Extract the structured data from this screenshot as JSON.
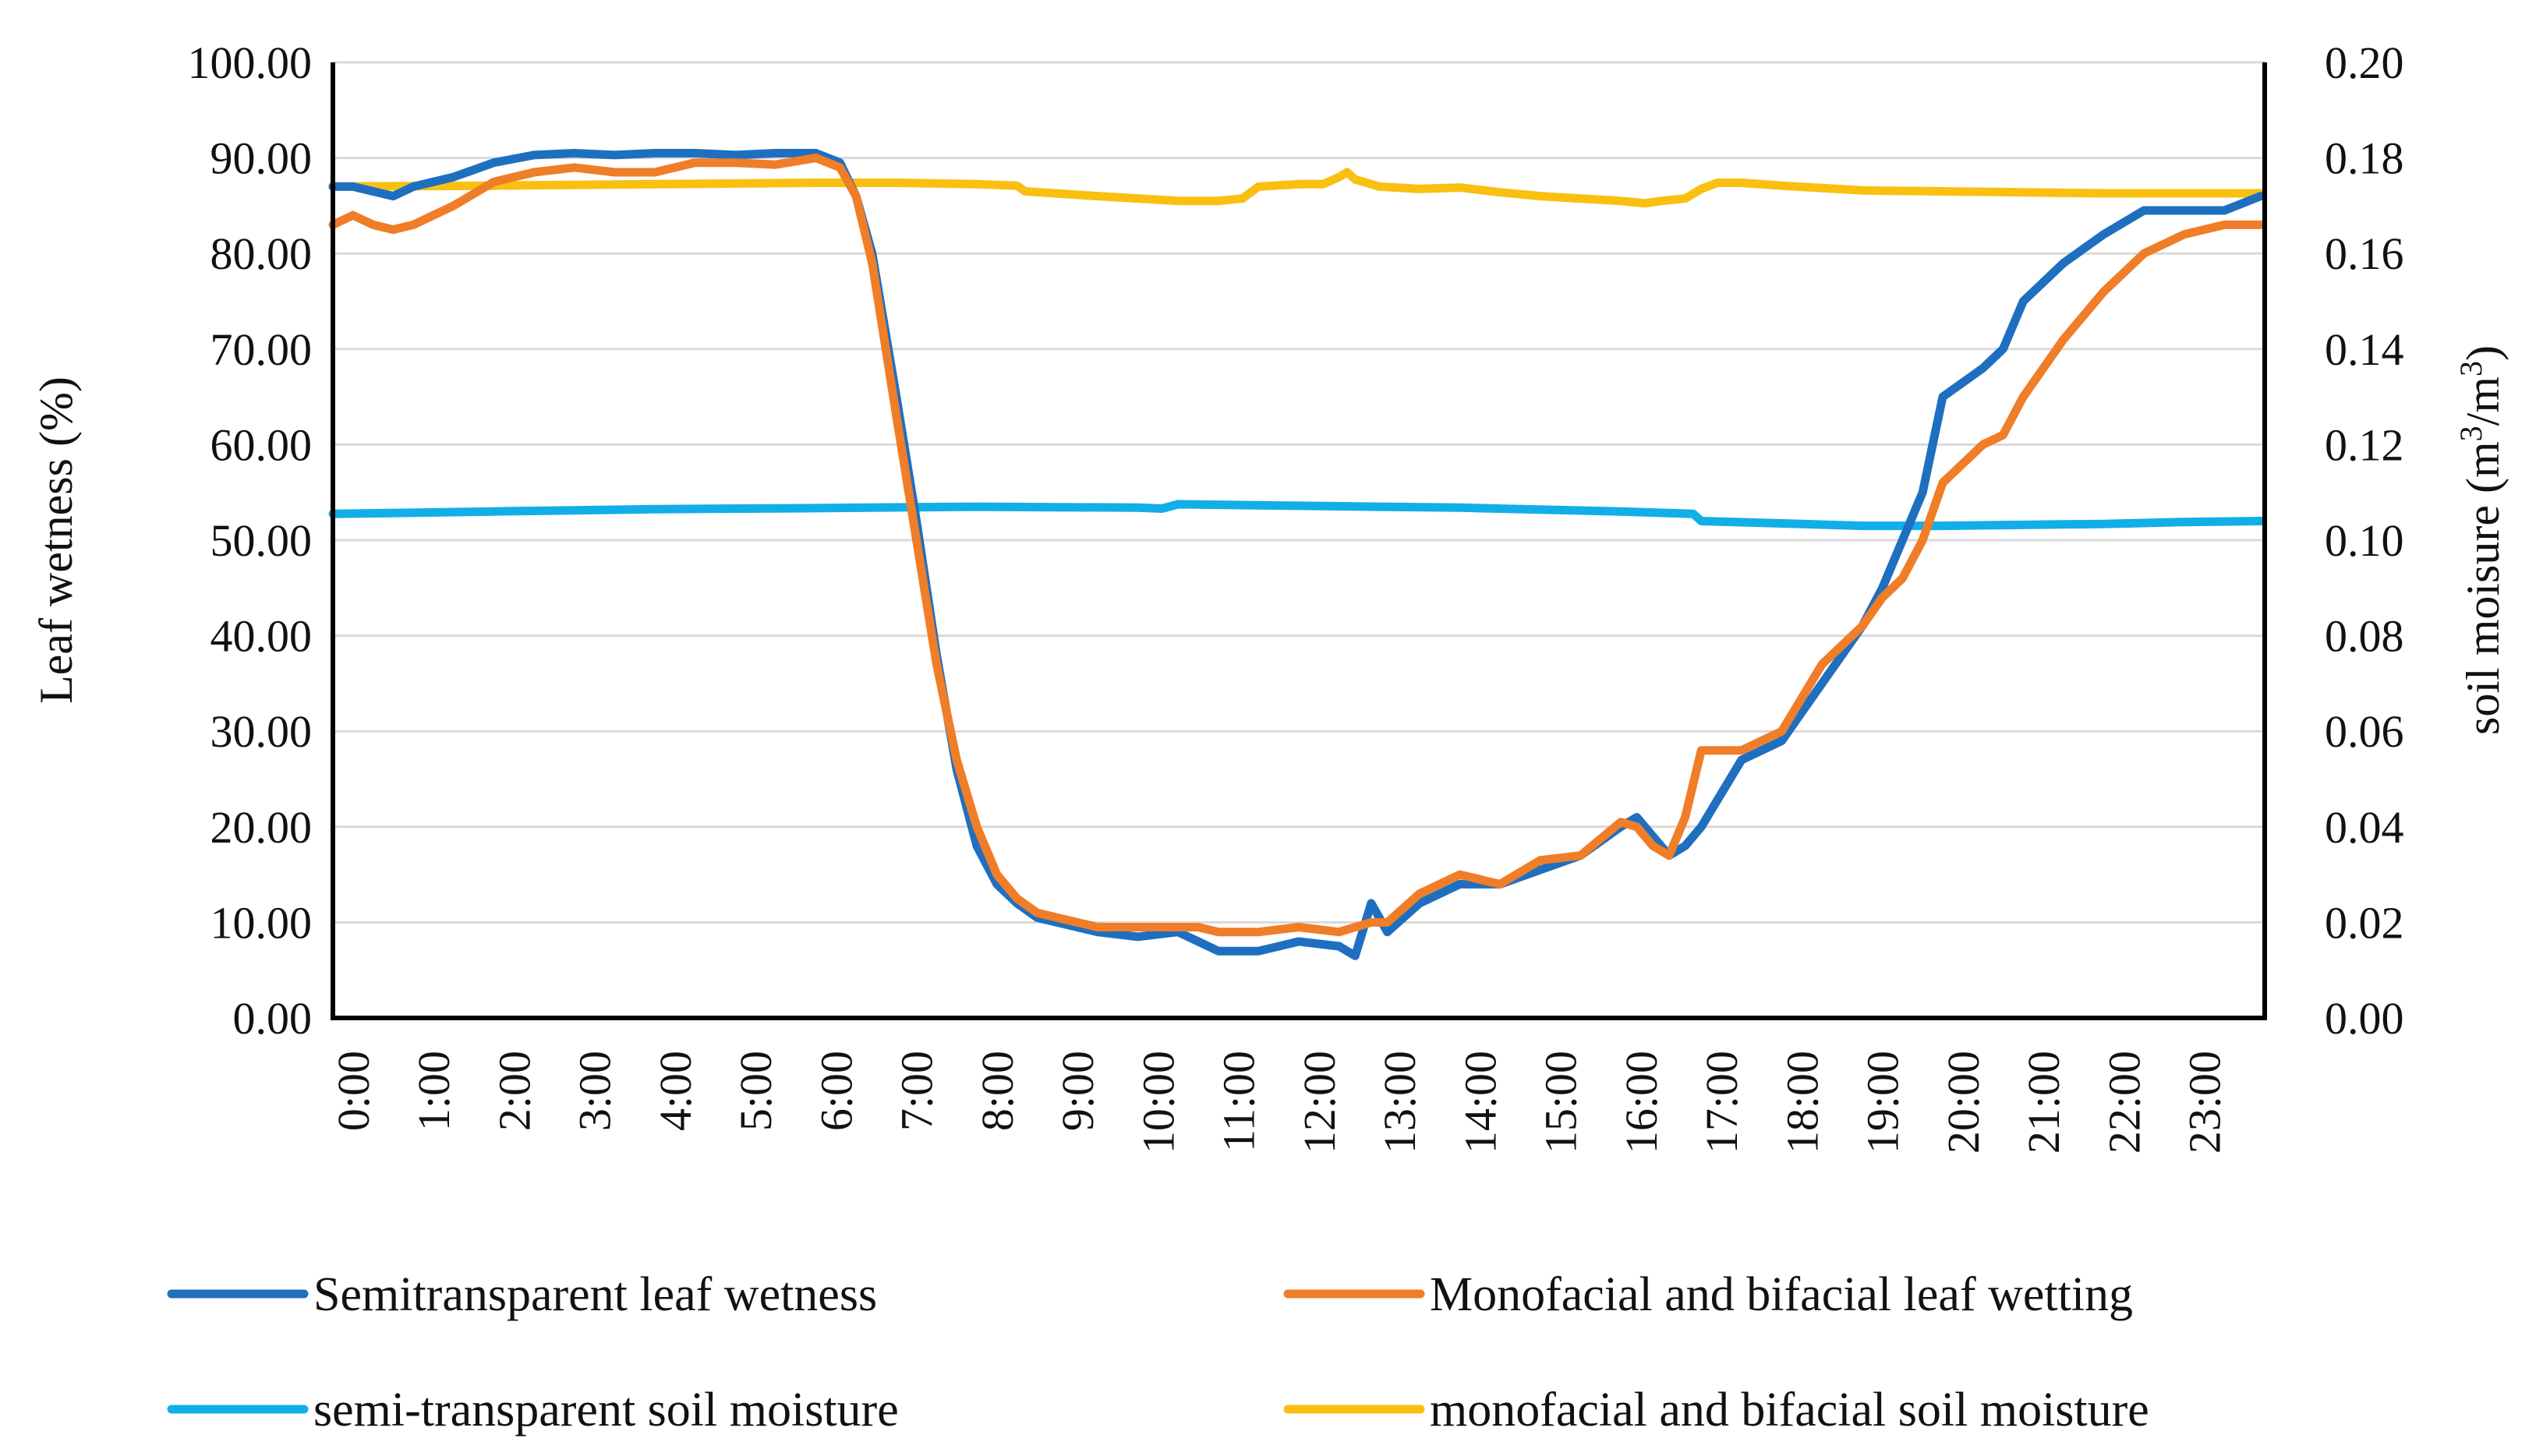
{
  "chart_data": {
    "type": "line",
    "title": "",
    "xlabel": "",
    "ylabel": "Leaf wetness (%)",
    "y2label": {
      "prefix": "soil moisure (m",
      "sup1": "3",
      "mid": "/m",
      "sup2": "3",
      "suffix": ")"
    },
    "ylim": [
      0,
      100
    ],
    "y2lim": [
      0,
      0.2
    ],
    "y_ticks": [
      "0.00",
      "10.00",
      "20.00",
      "30.00",
      "40.00",
      "50.00",
      "60.00",
      "70.00",
      "80.00",
      "90.00",
      "100.00"
    ],
    "y2_ticks": [
      "0.00",
      "0.02",
      "0.04",
      "0.06",
      "0.08",
      "0.10",
      "0.12",
      "0.14",
      "0.16",
      "0.18",
      "0.20"
    ],
    "x_ticks": [
      "0:00",
      "1:00",
      "2:00",
      "3:00",
      "4:00",
      "5:00",
      "6:00",
      "7:00",
      "8:00",
      "9:00",
      "10:00",
      "11:00",
      "12:00",
      "13:00",
      "14:00",
      "15:00",
      "16:00",
      "17:00",
      "18:00",
      "19:00",
      "20:00",
      "21:00",
      "22:00",
      "23:00"
    ],
    "grid": true,
    "legend_position": "bottom",
    "series": [
      {
        "name": "Semitransparent leaf wetness",
        "axis": "left",
        "color": "#1f6fc0",
        "x": [
          0,
          0.25,
          0.5,
          0.75,
          1,
          1.5,
          2,
          2.5,
          3,
          3.5,
          4,
          4.5,
          5,
          5.5,
          6,
          6.3,
          6.5,
          6.7,
          7,
          7.25,
          7.5,
          7.75,
          8,
          8.25,
          8.5,
          8.75,
          9,
          9.5,
          10,
          10.5,
          10.75,
          11,
          11.5,
          12,
          12.5,
          12.7,
          12.9,
          13.1,
          13.5,
          14,
          14.5,
          15,
          15.5,
          16,
          16.2,
          16.4,
          16.6,
          16.8,
          17,
          17.5,
          18,
          18.5,
          19,
          19.25,
          19.5,
          19.75,
          20,
          20.5,
          20.75,
          21,
          21.5,
          22,
          22.5,
          23,
          23.5,
          23.95
        ],
        "y": [
          87,
          87,
          86.5,
          86,
          87,
          88,
          89.5,
          90.3,
          90.5,
          90.3,
          90.5,
          90.5,
          90.3,
          90.5,
          90.5,
          89.5,
          86,
          80,
          65,
          52,
          38,
          26,
          18,
          14,
          12,
          10.5,
          10,
          9,
          8.5,
          9,
          8,
          7,
          7,
          8,
          7.5,
          6.5,
          12,
          9,
          12,
          14,
          14,
          15.5,
          17,
          20,
          21,
          19,
          17,
          18,
          20,
          27,
          29,
          35,
          41,
          45,
          50,
          55,
          65,
          68,
          70,
          75,
          79,
          82,
          84.5,
          84.5,
          84.5,
          86
        ]
      },
      {
        "name": "Monofacial and bifacial leaf wetting",
        "axis": "left",
        "color": "#f07d28",
        "x": [
          0,
          0.25,
          0.5,
          0.75,
          1,
          1.5,
          2,
          2.5,
          3,
          3.5,
          4,
          4.5,
          5,
          5.5,
          6,
          6.3,
          6.5,
          6.7,
          7,
          7.25,
          7.5,
          7.75,
          8,
          8.25,
          8.5,
          8.75,
          9,
          9.5,
          10,
          10.5,
          10.75,
          11,
          11.5,
          12,
          12.5,
          12.7,
          12.9,
          13.1,
          13.5,
          14,
          14.5,
          15,
          15.5,
          16,
          16.2,
          16.4,
          16.6,
          16.8,
          17,
          17.5,
          18,
          18.5,
          19,
          19.25,
          19.5,
          19.75,
          20,
          20.5,
          20.75,
          21,
          21.5,
          22,
          22.5,
          23,
          23.5,
          23.95
        ],
        "y": [
          83,
          84,
          83,
          82.5,
          83,
          85,
          87.5,
          88.5,
          89,
          88.5,
          88.5,
          89.5,
          89.5,
          89.3,
          90,
          89,
          86,
          79,
          63,
          50,
          37,
          27,
          20,
          15,
          12.5,
          11,
          10.5,
          9.5,
          9.5,
          9.5,
          9.5,
          9,
          9,
          9.5,
          9,
          9.5,
          10,
          10,
          13,
          15,
          14,
          16.5,
          17,
          20.5,
          20,
          18,
          17,
          21,
          28,
          28,
          30,
          37,
          41,
          44,
          46,
          50,
          56,
          60,
          61,
          65,
          71,
          76,
          80,
          82,
          83,
          83
        ]
      },
      {
        "name": "semi-transparent soil moisture",
        "axis": "right",
        "color": "#12aee8",
        "x": [
          0,
          2,
          4,
          6,
          8,
          10,
          10.3,
          10.5,
          12,
          14,
          16,
          16.9,
          17,
          18,
          19,
          20,
          21,
          22,
          23,
          23.95
        ],
        "y": [
          0.1055,
          0.106,
          0.1065,
          0.1067,
          0.107,
          0.1068,
          0.1066,
          0.1075,
          0.1072,
          0.1068,
          0.106,
          0.1055,
          0.104,
          0.1035,
          0.103,
          0.103,
          0.1032,
          0.1034,
          0.1038,
          0.104
        ]
      },
      {
        "name": "monofacial and bifacial soil moisture",
        "axis": "right",
        "color": "#f9c011",
        "x": [
          0,
          2,
          4,
          6,
          7,
          8,
          8.5,
          8.6,
          9.5,
          10.5,
          11,
          11.3,
          11.5,
          12,
          12.3,
          12.5,
          12.6,
          12.7,
          13,
          13.5,
          14,
          14.5,
          15,
          15.5,
          16,
          16.3,
          16.5,
          16.8,
          17,
          17.2,
          17.5,
          18,
          19,
          20,
          21,
          22,
          23,
          23.95
        ],
        "y": [
          0.174,
          0.1742,
          0.1745,
          0.1748,
          0.1748,
          0.1745,
          0.1742,
          0.173,
          0.172,
          0.171,
          0.171,
          0.1715,
          0.174,
          0.1745,
          0.1745,
          0.176,
          0.177,
          0.1755,
          0.174,
          0.1735,
          0.1738,
          0.1728,
          0.172,
          0.1715,
          0.171,
          0.1705,
          0.171,
          0.1715,
          0.1735,
          0.1748,
          0.1748,
          0.1742,
          0.1732,
          0.173,
          0.1728,
          0.1726,
          0.1726,
          0.1726
        ]
      }
    ]
  }
}
